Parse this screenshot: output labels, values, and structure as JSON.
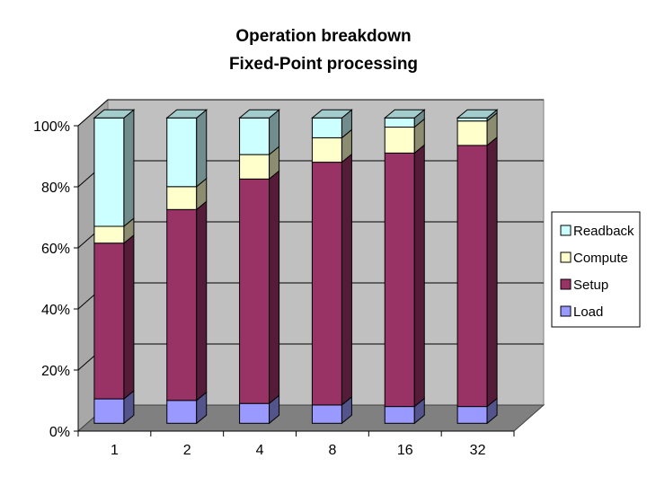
{
  "chart_data": {
    "type": "bar",
    "stacked": "percent",
    "three_d": true,
    "title": [
      "Operation breakdown",
      "Fixed-Point processing"
    ],
    "xlabel": "",
    "ylabel": "",
    "categories": [
      "1",
      "2",
      "4",
      "8",
      "16",
      "32"
    ],
    "ylim": [
      0,
      100
    ],
    "y_ticks": [
      0,
      20,
      40,
      60,
      80,
      100
    ],
    "y_tick_suffix": "%",
    "grid": true,
    "legend_position": "right",
    "series": [
      {
        "name": "Load",
        "color": "#9999ff",
        "values": [
          8,
          7.5,
          6.5,
          6,
          5.5,
          5.5
        ]
      },
      {
        "name": "Setup",
        "color": "#993366",
        "values": [
          51,
          62.5,
          73.5,
          79.5,
          83,
          85.5
        ]
      },
      {
        "name": "Compute",
        "color": "#ffffcc",
        "values": [
          5.5,
          7.5,
          8,
          8,
          8.5,
          8
        ]
      },
      {
        "name": "Readback",
        "color": "#ccffff",
        "values": [
          35.5,
          22.5,
          12,
          6.5,
          3,
          1
        ]
      }
    ],
    "colors": {
      "plot_back": "#c0c0c0",
      "floor": "#808080",
      "border": "#000000"
    }
  }
}
